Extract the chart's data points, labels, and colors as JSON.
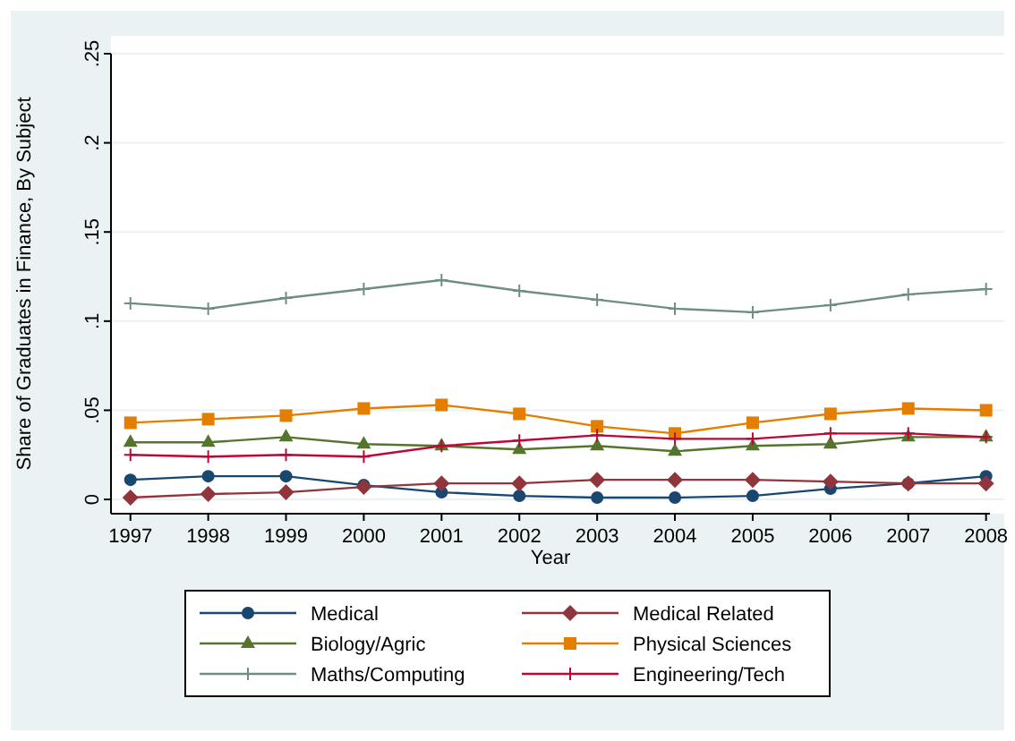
{
  "chart_data": {
    "type": "line",
    "xlabel": "Year",
    "ylabel": "Share of Graduates in Finance, By Subject",
    "x": [
      1997,
      1998,
      1999,
      2000,
      2001,
      2002,
      2003,
      2004,
      2005,
      2006,
      2007,
      2008
    ],
    "xlim": [
      1996.75,
      2008.05
    ],
    "xticks": [
      1997,
      1998,
      1999,
      2000,
      2001,
      2002,
      2003,
      2004,
      2005,
      2006,
      2007,
      2008
    ],
    "ylim": [
      -0.008,
      0.25
    ],
    "yticks": [
      {
        "value": 0,
        "label": "0"
      },
      {
        "value": 0.05,
        "label": ".05"
      },
      {
        "value": 0.1,
        "label": ".1"
      },
      {
        "value": 0.15,
        "label": ".15"
      },
      {
        "value": 0.2,
        "label": ".2"
      },
      {
        "value": 0.25,
        "label": ".25"
      }
    ],
    "grid": "y",
    "legend": "bottom",
    "line_style": "solid",
    "series": [
      {
        "name": "Medical",
        "color": "#1a476f",
        "marker": "circle",
        "values": [
          0.011,
          0.013,
          0.013,
          0.008,
          0.004,
          0.002,
          0.001,
          0.001,
          0.002,
          0.006,
          0.009,
          0.013
        ]
      },
      {
        "name": "Medical Related",
        "color": "#90353b",
        "marker": "diamond",
        "values": [
          0.001,
          0.003,
          0.004,
          0.007,
          0.009,
          0.009,
          0.011,
          0.011,
          0.011,
          0.01,
          0.009,
          0.009
        ]
      },
      {
        "name": "Biology/Agric",
        "color": "#55752f",
        "marker": "triangle",
        "values": [
          0.032,
          0.032,
          0.035,
          0.031,
          0.03,
          0.028,
          0.03,
          0.027,
          0.03,
          0.031,
          0.035,
          0.035
        ]
      },
      {
        "name": "Physical Sciences",
        "color": "#e37e00",
        "marker": "square",
        "values": [
          0.043,
          0.045,
          0.047,
          0.051,
          0.053,
          0.048,
          0.041,
          0.037,
          0.043,
          0.048,
          0.051,
          0.05
        ]
      },
      {
        "name": "Maths/Computing",
        "color": "#6e8e84",
        "marker": "cross",
        "values": [
          0.11,
          0.107,
          0.113,
          0.118,
          0.123,
          0.117,
          0.112,
          0.107,
          0.105,
          0.109,
          0.115,
          0.118
        ]
      },
      {
        "name": "Engineering/Tech",
        "color": "#c10534",
        "marker": "cross",
        "values": [
          0.025,
          0.024,
          0.025,
          0.024,
          0.03,
          0.033,
          0.036,
          0.034,
          0.034,
          0.037,
          0.037,
          0.035
        ]
      }
    ]
  }
}
